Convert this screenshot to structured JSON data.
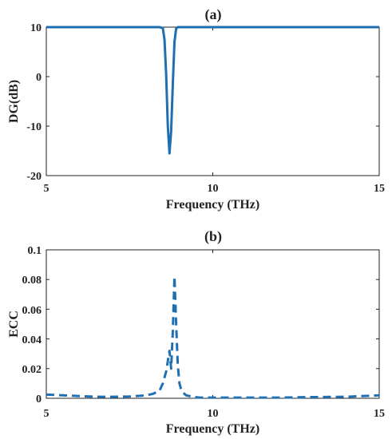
{
  "chart_data": [
    {
      "type": "line",
      "title": "(a)",
      "xlabel": "Frequency (THz)",
      "ylabel": "DG(dB)",
      "xlim": [
        5,
        15
      ],
      "ylim": [
        -20,
        10
      ],
      "xticks": [
        5,
        10,
        15
      ],
      "xtick_labels": [
        "5",
        "10",
        "15"
      ],
      "yticks": [
        -20,
        -10,
        0,
        10
      ],
      "ytick_labels": [
        "-20",
        "-10",
        "0",
        "10"
      ],
      "grid": false,
      "series": [
        {
          "line_style": "solid",
          "color": "#1f6fb2",
          "x": [
            5.0,
            7.0,
            8.4,
            8.5,
            8.55,
            8.6,
            8.65,
            8.7,
            8.75,
            8.8,
            8.85,
            8.9,
            8.95,
            9.0,
            9.1,
            10.0,
            12.0,
            15.0
          ],
          "y": [
            10.0,
            10.0,
            10.0,
            9.8,
            7.5,
            0.5,
            -10.0,
            -15.5,
            -11.0,
            -1.5,
            7.0,
            9.7,
            10.0,
            10.0,
            10.0,
            10.0,
            10.0,
            10.0
          ]
        }
      ]
    },
    {
      "type": "line",
      "title": "(b)",
      "xlabel": "Frequency (THz)",
      "ylabel": "ECC",
      "xlim": [
        5,
        15
      ],
      "ylim": [
        0,
        0.1
      ],
      "xticks": [
        5,
        10,
        15
      ],
      "xtick_labels": [
        "5",
        "10",
        "15"
      ],
      "yticks": [
        0,
        0.02,
        0.04,
        0.06,
        0.08,
        0.1
      ],
      "ytick_labels": [
        "0",
        "0.02",
        "0.04",
        "0.06",
        "0.08",
        "0.1"
      ],
      "grid": false,
      "series": [
        {
          "line_style": "dashed",
          "color": "#1f6fb2",
          "x": [
            5.0,
            5.5,
            6.0,
            6.5,
            7.0,
            7.5,
            8.0,
            8.2,
            8.4,
            8.5,
            8.6,
            8.65,
            8.7,
            8.75,
            8.8,
            8.85,
            8.9,
            8.95,
            9.0,
            9.05,
            9.1,
            9.2,
            9.4,
            9.6,
            10.0,
            11.0,
            12.0,
            13.0,
            14.0,
            15.0
          ],
          "y": [
            0.0025,
            0.002,
            0.0015,
            0.001,
            0.001,
            0.0012,
            0.002,
            0.003,
            0.005,
            0.01,
            0.018,
            0.025,
            0.032,
            0.02,
            0.045,
            0.082,
            0.05,
            0.022,
            0.01,
            0.006,
            0.004,
            0.002,
            0.001,
            0.0005,
            0.0005,
            0.0005,
            0.0005,
            0.0008,
            0.001,
            0.002
          ]
        }
      ]
    }
  ]
}
